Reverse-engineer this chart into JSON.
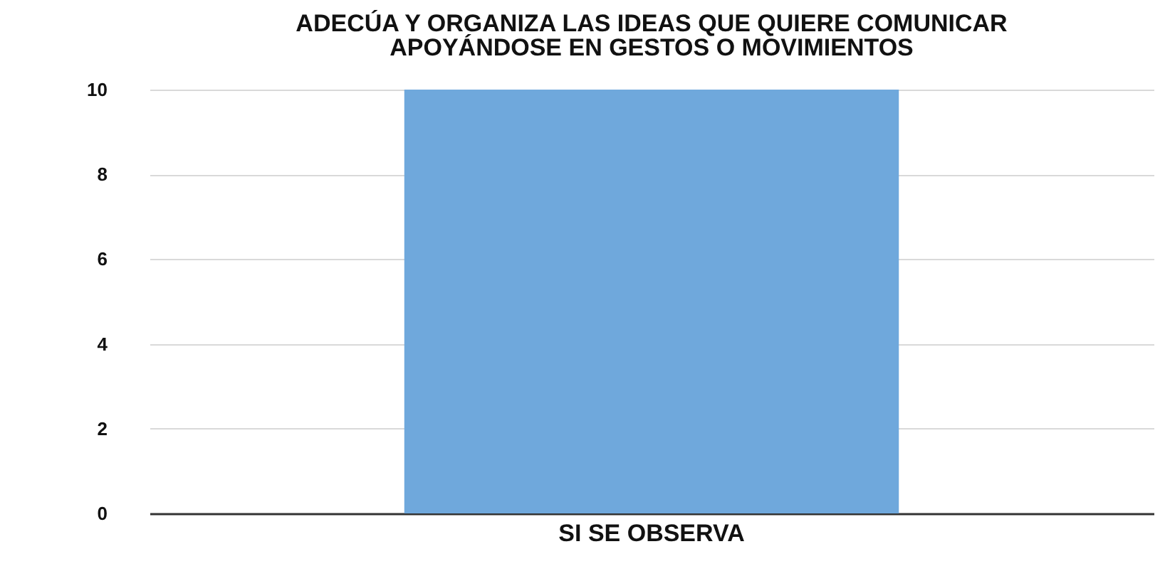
{
  "chart_data": {
    "type": "bar",
    "title": "ADECÚA Y ORGANIZA LAS IDEAS QUE QUIERE COMUNICAR\nAPOYÁNDOSE EN GESTOS O MOVIMIENTOS",
    "categories": [
      "SI SE OBSERVA"
    ],
    "series": [
      {
        "color": "#6fa8dc",
        "values": [
          10
        ]
      }
    ],
    "ylim": [
      0,
      10
    ],
    "yticks": [
      0,
      2,
      4,
      6,
      8,
      10
    ],
    "grid": "y",
    "legend": false
  }
}
